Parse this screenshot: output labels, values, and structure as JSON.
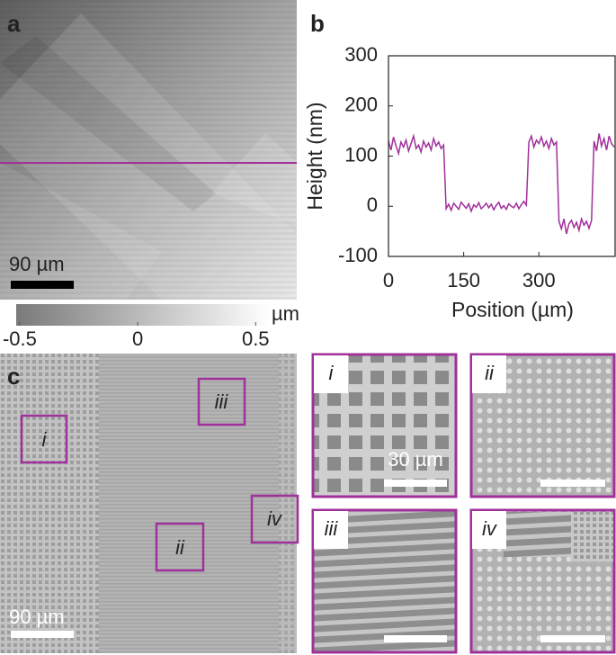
{
  "panel_a": {
    "label": "a",
    "scale_bar": "90 µm",
    "colorbar": {
      "unit": "µm",
      "lim": [
        -0.515,
        0.56
      ],
      "ticks": [
        -0.5,
        0,
        0.5
      ]
    }
  },
  "chart_data": {
    "type": "line",
    "label": "b",
    "xlabel": "Position (µm)",
    "ylabel": "Height (nm)",
    "xlim": [
      0,
      452
    ],
    "ylim": [
      -100,
      300
    ],
    "xticks": [
      0,
      150,
      300
    ],
    "yticks": [
      -100,
      0,
      100,
      200,
      300
    ],
    "color": "#a0309a",
    "x": [
      0,
      5,
      10,
      15,
      20,
      25,
      30,
      35,
      40,
      45,
      50,
      55,
      60,
      65,
      70,
      75,
      80,
      85,
      90,
      95,
      100,
      105,
      110,
      115,
      120,
      125,
      130,
      135,
      140,
      145,
      150,
      155,
      160,
      165,
      170,
      175,
      180,
      185,
      190,
      195,
      200,
      205,
      210,
      215,
      220,
      225,
      230,
      235,
      240,
      245,
      250,
      255,
      260,
      265,
      270,
      275,
      280,
      285,
      290,
      295,
      300,
      305,
      310,
      315,
      320,
      325,
      330,
      335,
      340,
      345,
      350,
      355,
      360,
      365,
      370,
      375,
      380,
      385,
      390,
      395,
      400,
      405,
      410,
      415,
      420,
      425,
      430,
      435,
      440,
      445,
      450
    ],
    "values": [
      130,
      112,
      138,
      120,
      105,
      128,
      118,
      132,
      110,
      125,
      140,
      115,
      122,
      108,
      130,
      118,
      126,
      112,
      135,
      120,
      128,
      115,
      122,
      -5,
      4,
      -8,
      6,
      0,
      -6,
      8,
      2,
      -4,
      5,
      -10,
      3,
      -2,
      7,
      -5,
      0,
      6,
      -3,
      4,
      -7,
      2,
      8,
      -4,
      1,
      -6,
      5,
      0,
      -3,
      6,
      -5,
      3,
      10,
      2,
      128,
      140,
      118,
      132,
      125,
      138,
      120,
      130,
      115,
      135,
      122,
      128,
      -30,
      -45,
      -25,
      -55,
      -35,
      -28,
      -42,
      -32,
      -48,
      -25,
      -38,
      -30,
      -44,
      -28,
      130,
      110,
      145,
      120,
      135,
      112,
      140,
      125,
      118
    ]
  },
  "panel_c": {
    "label": "c",
    "scale_bar": "90 µm",
    "regions": [
      {
        "label": "i"
      },
      {
        "label": "ii"
      },
      {
        "label": "iii"
      },
      {
        "label": "iv"
      }
    ],
    "insets": [
      {
        "label": "i",
        "scale_bar": "30 µm"
      },
      {
        "label": "ii"
      },
      {
        "label": "iii"
      },
      {
        "label": "iv"
      }
    ]
  }
}
